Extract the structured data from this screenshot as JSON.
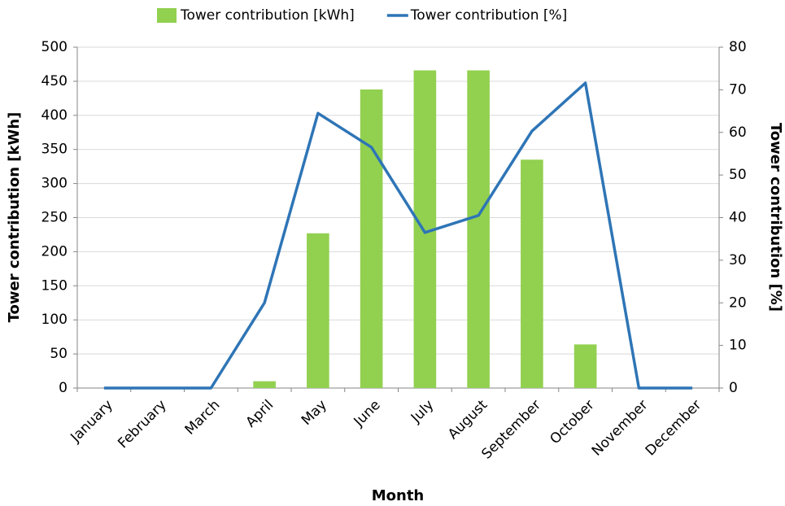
{
  "chart_data": {
    "type": "combo",
    "xlabel": "Month",
    "ylabel": "Tower contribution [kWh]",
    "y2label": "Tower contribution [%]",
    "categories": [
      "January",
      "February",
      "March",
      "April",
      "May",
      "June",
      "July",
      "August",
      "September",
      "October",
      "November",
      "December"
    ],
    "series": [
      {
        "name": "Tower contribution [kWh]",
        "type": "bar",
        "color": "#92d050",
        "values": [
          0,
          0,
          0,
          10,
          227,
          438,
          466,
          466,
          335,
          64,
          0,
          0
        ]
      },
      {
        "name": "Tower contribution [%]",
        "type": "line",
        "axis": "y2",
        "color": "#2e75b6",
        "values": [
          0,
          0,
          0,
          20,
          64.5,
          56.5,
          36.5,
          40.5,
          60.3,
          71.6,
          0,
          0
        ]
      }
    ],
    "ylim": [
      0,
      500
    ],
    "yticks": [
      0,
      50,
      100,
      150,
      200,
      250,
      300,
      350,
      400,
      450,
      500
    ],
    "y2lim": [
      0,
      80
    ],
    "y2ticks": [
      0,
      10,
      20,
      30,
      40,
      50,
      60,
      70,
      80
    ],
    "grid": true,
    "legend": "top"
  }
}
